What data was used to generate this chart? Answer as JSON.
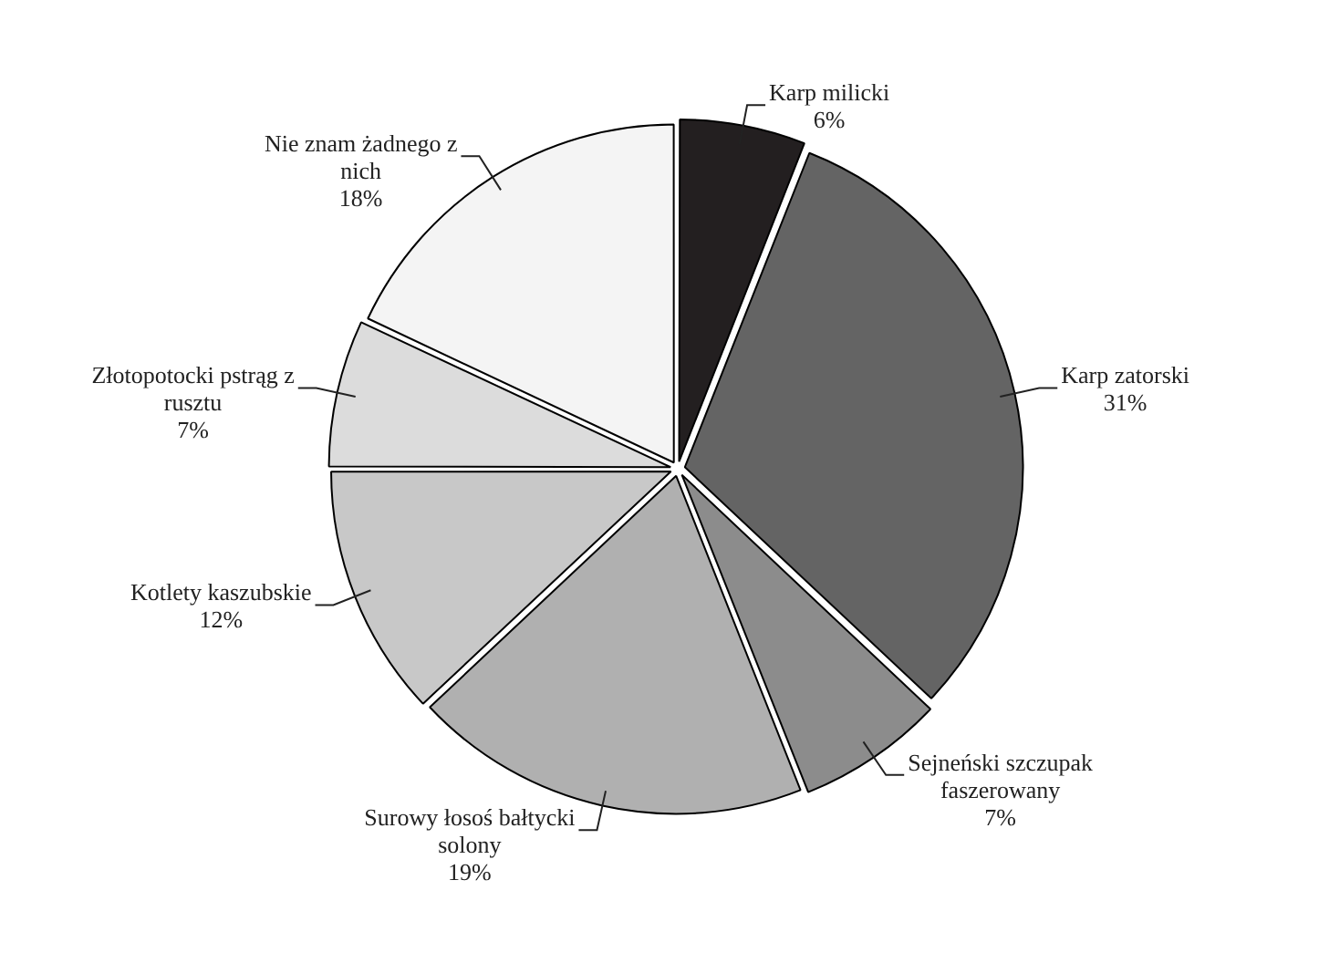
{
  "chart_data": {
    "type": "pie",
    "categories": [
      "Karp milicki",
      "Karp zatorski",
      "Sejneński szczupak faszerowany",
      "Surowy łosoś bałtycki solony",
      "Kotlety kaszubskie",
      "Złotopotocki pstrąg z rusztu",
      "Nie znam żadnego z nich"
    ],
    "values": [
      6,
      31,
      7,
      19,
      12,
      7,
      18
    ],
    "colors": [
      "#231f20",
      "#646464",
      "#8c8c8c",
      "#b0b0b0",
      "#c8c8c8",
      "#dcdcdc",
      "#f4f4f4"
    ],
    "value_labels": [
      "6%",
      "31%",
      "7%",
      "19%",
      "12%",
      "7%",
      "18%"
    ],
    "legend": false
  }
}
